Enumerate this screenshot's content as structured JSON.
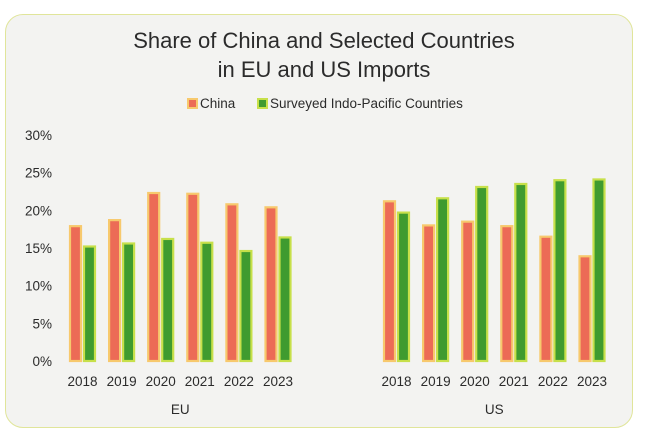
{
  "chart_data": {
    "type": "bar",
    "title_lines": [
      "Share of China and Selected Countries",
      "in EU and US Imports"
    ],
    "legend": [
      "China",
      "Surveyed Indo-Pacific Countries"
    ],
    "yticks": [
      "30%",
      "25%",
      "20%",
      "15%",
      "10%",
      "5%",
      "0%"
    ],
    "ylim": [
      0,
      30
    ],
    "groups": [
      {
        "name": "EU",
        "categories": [
          "2018",
          "2019",
          "2020",
          "2021",
          "2022",
          "2023"
        ],
        "series": [
          {
            "name": "China",
            "values": [
              17.9,
              18.7,
              22.3,
              22.2,
              20.8,
              20.4
            ]
          },
          {
            "name": "Surveyed Indo-Pacific Countries",
            "values": [
              15.2,
              15.6,
              16.2,
              15.7,
              14.6,
              16.4
            ]
          }
        ]
      },
      {
        "name": "US",
        "categories": [
          "2018",
          "2019",
          "2020",
          "2021",
          "2022",
          "2023"
        ],
        "series": [
          {
            "name": "China",
            "values": [
              21.2,
              18.0,
              18.5,
              17.9,
              16.5,
              13.9
            ]
          },
          {
            "name": "Surveyed Indo-Pacific Countries",
            "values": [
              19.7,
              21.6,
              23.1,
              23.5,
              24.0,
              24.1
            ]
          }
        ]
      }
    ],
    "colors": {
      "china_fill": "#ec6b56",
      "china_border": "#f7c96d",
      "indo_fill": "#3f9b2f",
      "indo_border": "#c7e04a"
    },
    "grid": false,
    "legend_position": "top-center"
  }
}
